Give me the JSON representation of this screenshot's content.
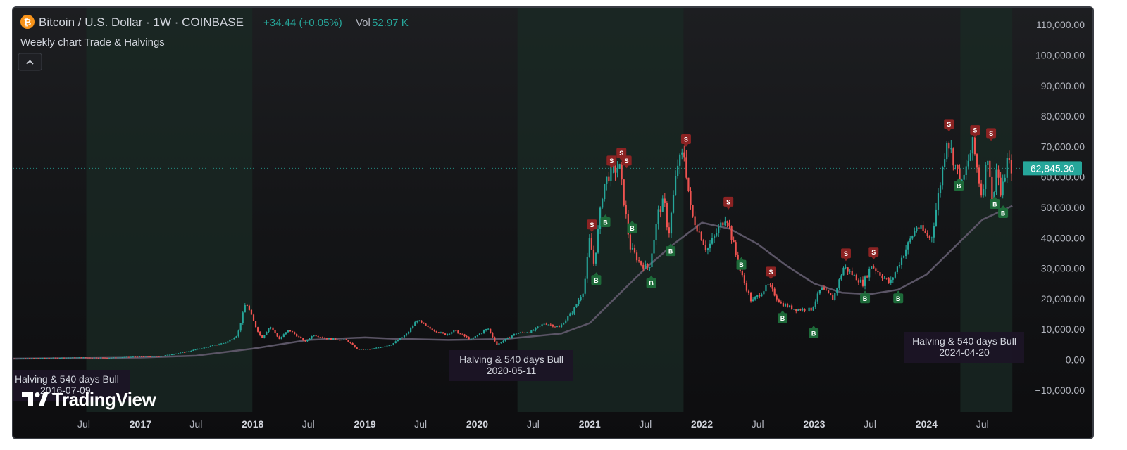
{
  "header": {
    "symbol_title": "Bitcoin / U.S. Dollar · 1W · COINBASE",
    "change": "+34.44 (+0.05%)",
    "vol_label": "Vol",
    "vol_value": "52.97 K",
    "indicator_name": "Weekly chart Trade & Halvings",
    "collapse_icon": "chevron-up-icon",
    "coin_icon": "bitcoin-icon"
  },
  "watermark": {
    "text": "TradingView",
    "icon": "tradingview-logo-icon"
  },
  "colors": {
    "up": "#26a69a",
    "down": "#ef5350",
    "ma": "#5b5566",
    "buy": "#1e6b3a",
    "sell": "#8b2323",
    "price_label": "#26a69a",
    "halving_band": "#1a2a24"
  },
  "chart_data": {
    "type": "line",
    "title": "Bitcoin / U.S. Dollar · 1W · COINBASE",
    "xlabel": "",
    "ylabel": "",
    "ylim": [
      -10000,
      110000
    ],
    "last_price": "62,845.30",
    "y_ticks": [
      "110,000.00",
      "100,000.00",
      "90,000.00",
      "80,000.00",
      "70,000.00",
      "60,000.00",
      "50,000.00",
      "40,000.00",
      "30,000.00",
      "20,000.00",
      "10,000.00",
      "0.00",
      "−10,000.00"
    ],
    "x_ticks": [
      {
        "label": "Jul",
        "date": "2016-07-01",
        "major": false
      },
      {
        "label": "2017",
        "date": "2017-01-01",
        "major": true
      },
      {
        "label": "Jul",
        "date": "2017-07-01",
        "major": false
      },
      {
        "label": "2018",
        "date": "2018-01-01",
        "major": true
      },
      {
        "label": "Jul",
        "date": "2018-07-01",
        "major": false
      },
      {
        "label": "2019",
        "date": "2019-01-01",
        "major": true
      },
      {
        "label": "Jul",
        "date": "2019-07-01",
        "major": false
      },
      {
        "label": "2020",
        "date": "2020-01-01",
        "major": true
      },
      {
        "label": "Jul",
        "date": "2020-07-01",
        "major": false
      },
      {
        "label": "2021",
        "date": "2021-01-01",
        "major": true
      },
      {
        "label": "Jul",
        "date": "2021-07-01",
        "major": false
      },
      {
        "label": "2022",
        "date": "2022-01-01",
        "major": true
      },
      {
        "label": "Jul",
        "date": "2022-07-01",
        "major": false
      },
      {
        "label": "2023",
        "date": "2023-01-01",
        "major": true
      },
      {
        "label": "Jul",
        "date": "2023-07-01",
        "major": false
      },
      {
        "label": "2024",
        "date": "2024-01-01",
        "major": true
      },
      {
        "label": "Jul",
        "date": "2024-07-01",
        "major": false
      }
    ],
    "price_path": [
      [
        "2015-10-01",
        280
      ],
      [
        "2016-01-01",
        430
      ],
      [
        "2016-06-15",
        700
      ],
      [
        "2016-10-01",
        620
      ],
      [
        "2017-01-01",
        1000
      ],
      [
        "2017-03-15",
        1150
      ],
      [
        "2017-06-01",
        2500
      ],
      [
        "2017-08-15",
        4200
      ],
      [
        "2017-10-15",
        5700
      ],
      [
        "2017-11-20",
        8200
      ],
      [
        "2017-12-17",
        19000
      ],
      [
        "2018-01-15",
        11500
      ],
      [
        "2018-02-06",
        7000
      ],
      [
        "2018-03-05",
        11000
      ],
      [
        "2018-04-05",
        6800
      ],
      [
        "2018-05-05",
        9800
      ],
      [
        "2018-06-28",
        5900
      ],
      [
        "2018-07-25",
        8200
      ],
      [
        "2018-09-01",
        7000
      ],
      [
        "2018-11-10",
        6400
      ],
      [
        "2018-12-15",
        3300
      ],
      [
        "2019-02-01",
        3500
      ],
      [
        "2019-04-05",
        5000
      ],
      [
        "2019-05-25",
        8500
      ],
      [
        "2019-06-26",
        13000
      ],
      [
        "2019-08-01",
        10500
      ],
      [
        "2019-09-25",
        8200
      ],
      [
        "2019-10-26",
        9500
      ],
      [
        "2019-12-18",
        6600
      ],
      [
        "2020-02-12",
        10300
      ],
      [
        "2020-03-12",
        4900
      ],
      [
        "2020-05-11",
        8600
      ],
      [
        "2020-07-01",
        9200
      ],
      [
        "2020-08-15",
        12000
      ],
      [
        "2020-10-01",
        10600
      ],
      [
        "2020-11-15",
        16000
      ],
      [
        "2020-12-20",
        23000
      ],
      [
        "2021-01-08",
        40000
      ],
      [
        "2021-01-22",
        31000
      ],
      [
        "2021-02-21",
        57000
      ],
      [
        "2021-03-13",
        61000
      ],
      [
        "2021-04-14",
        63500
      ],
      [
        "2021-05-19",
        37000
      ],
      [
        "2021-06-22",
        31500
      ],
      [
        "2021-07-20",
        30000
      ],
      [
        "2021-08-20",
        49000
      ],
      [
        "2021-09-07",
        52000
      ],
      [
        "2021-09-21",
        40500
      ],
      [
        "2021-10-20",
        64000
      ],
      [
        "2021-11-10",
        68000
      ],
      [
        "2021-12-04",
        48000
      ],
      [
        "2022-01-24",
        36000
      ],
      [
        "2022-03-28",
        47500
      ],
      [
        "2022-05-09",
        30000
      ],
      [
        "2022-06-18",
        19000
      ],
      [
        "2022-08-13",
        24500
      ],
      [
        "2022-09-20",
        18500
      ],
      [
        "2022-11-09",
        16500
      ],
      [
        "2022-12-30",
        16500
      ],
      [
        "2023-01-30",
        23500
      ],
      [
        "2023-03-10",
        20000
      ],
      [
        "2023-04-14",
        30500
      ],
      [
        "2023-06-15",
        25000
      ],
      [
        "2023-07-13",
        31000
      ],
      [
        "2023-09-11",
        25000
      ],
      [
        "2023-10-24",
        34500
      ],
      [
        "2023-12-08",
        44000
      ],
      [
        "2024-01-23",
        39500
      ],
      [
        "2024-02-28",
        62000
      ],
      [
        "2024-03-14",
        73000
      ],
      [
        "2024-05-01",
        57000
      ],
      [
        "2024-06-07",
        71000
      ],
      [
        "2024-07-05",
        54000
      ],
      [
        "2024-07-29",
        70000
      ],
      [
        "2024-08-05",
        49000
      ],
      [
        "2024-08-24",
        64000
      ],
      [
        "2024-09-06",
        53000
      ],
      [
        "2024-09-27",
        66000
      ],
      [
        "2024-10-06",
        62845
      ]
    ],
    "ma_path": [
      [
        "2015-10-01",
        300
      ],
      [
        "2016-07-01",
        500
      ],
      [
        "2017-01-01",
        700
      ],
      [
        "2017-07-01",
        1300
      ],
      [
        "2018-01-01",
        3600
      ],
      [
        "2018-07-01",
        6500
      ],
      [
        "2019-01-01",
        7300
      ],
      [
        "2019-04-01",
        6900
      ],
      [
        "2019-10-01",
        6500
      ],
      [
        "2020-04-01",
        6800
      ],
      [
        "2020-10-01",
        8600
      ],
      [
        "2021-01-01",
        12000
      ],
      [
        "2021-04-01",
        21000
      ],
      [
        "2021-07-01",
        30000
      ],
      [
        "2021-10-01",
        38000
      ],
      [
        "2022-01-01",
        45000
      ],
      [
        "2022-04-01",
        43000
      ],
      [
        "2022-07-01",
        38000
      ],
      [
        "2022-10-01",
        31000
      ],
      [
        "2023-01-01",
        25000
      ],
      [
        "2023-04-01",
        22000
      ],
      [
        "2023-07-01",
        21500
      ],
      [
        "2023-10-01",
        23000
      ],
      [
        "2024-01-01",
        28000
      ],
      [
        "2024-04-01",
        37000
      ],
      [
        "2024-07-01",
        46000
      ],
      [
        "2024-10-06",
        50500
      ]
    ],
    "halvings": [
      {
        "label": "Halving & 540 days Bull",
        "date_text": "2016-07-09",
        "start": "2016-07-09",
        "end": "2017-12-31"
      },
      {
        "label": "Halving & 540 days Bull",
        "date_text": "2020-05-11",
        "start": "2020-05-11",
        "end": "2021-11-02"
      },
      {
        "label": "Halving & 540 days Bull",
        "date_text": "2024-04-20",
        "start": "2024-04-20",
        "end": "2024-10-06"
      }
    ],
    "signals": [
      {
        "type": "S",
        "date": "2021-01-08",
        "price": 40000
      },
      {
        "type": "S",
        "date": "2021-03-13",
        "price": 61000
      },
      {
        "type": "S",
        "date": "2021-04-14",
        "price": 63500
      },
      {
        "type": "S",
        "date": "2021-05-01",
        "price": 61000
      },
      {
        "type": "S",
        "date": "2021-11-10",
        "price": 68000
      },
      {
        "type": "S",
        "date": "2022-03-28",
        "price": 47500
      },
      {
        "type": "S",
        "date": "2022-08-13",
        "price": 24500
      },
      {
        "type": "S",
        "date": "2023-04-14",
        "price": 30500
      },
      {
        "type": "S",
        "date": "2023-07-13",
        "price": 31000
      },
      {
        "type": "S",
        "date": "2024-03-14",
        "price": 73000
      },
      {
        "type": "S",
        "date": "2024-06-07",
        "price": 71000
      },
      {
        "type": "S",
        "date": "2024-07-29",
        "price": 70000
      },
      {
        "type": "B",
        "date": "2021-01-22",
        "price": 31000
      },
      {
        "type": "B",
        "date": "2021-02-21",
        "price": 50000
      },
      {
        "type": "B",
        "date": "2021-05-19",
        "price": 48000
      },
      {
        "type": "B",
        "date": "2021-07-20",
        "price": 30000
      },
      {
        "type": "B",
        "date": "2021-09-21",
        "price": 40500
      },
      {
        "type": "B",
        "date": "2022-05-09",
        "price": 36000
      },
      {
        "type": "B",
        "date": "2022-09-20",
        "price": 18500
      },
      {
        "type": "B",
        "date": "2022-12-30",
        "price": 13500
      },
      {
        "type": "B",
        "date": "2023-06-15",
        "price": 25000
      },
      {
        "type": "B",
        "date": "2023-10-01",
        "price": 25000
      },
      {
        "type": "B",
        "date": "2024-04-15",
        "price": 62000
      },
      {
        "type": "B",
        "date": "2024-08-10",
        "price": 56000
      },
      {
        "type": "B",
        "date": "2024-09-06",
        "price": 53000
      }
    ]
  }
}
